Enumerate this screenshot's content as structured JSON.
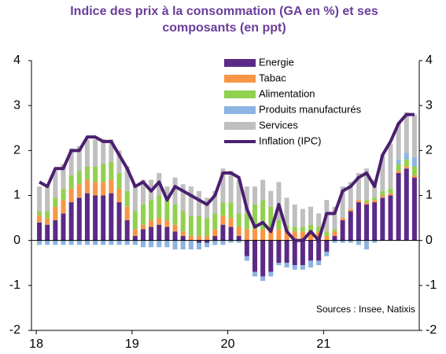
{
  "chart_data": {
    "type": "bar",
    "stacked": true,
    "title": "Indice des prix à la consommation (GA en %) et ses composants (en ppt)",
    "annotation": "Sources : Insee, Natixis",
    "categories": [
      "18",
      null,
      null,
      null,
      null,
      null,
      null,
      null,
      null,
      null,
      null,
      null,
      "19",
      null,
      null,
      null,
      null,
      null,
      null,
      null,
      null,
      null,
      null,
      null,
      "20",
      null,
      null,
      null,
      null,
      null,
      null,
      null,
      null,
      null,
      null,
      null,
      "21",
      null,
      null,
      null,
      null,
      null,
      null,
      null,
      null,
      null,
      null,
      null
    ],
    "ylim": [
      -2,
      4
    ],
    "yticks": [
      -2,
      -1,
      0,
      1,
      2,
      3,
      4
    ],
    "y2lim": [
      -2,
      4
    ],
    "y2ticks": [
      -2,
      -1,
      0,
      1,
      2,
      3,
      4
    ],
    "legend": "top",
    "series": [
      {
        "name": "Energie",
        "color": "#5b2a86",
        "values": [
          0.4,
          0.35,
          0.45,
          0.6,
          0.85,
          0.95,
          1.05,
          1.0,
          1.0,
          1.05,
          0.85,
          0.45,
          0.1,
          0.25,
          0.3,
          0.35,
          0.3,
          0.2,
          0.1,
          0.0,
          -0.05,
          -0.05,
          0.1,
          0.35,
          0.3,
          0.1,
          -0.35,
          -0.7,
          -0.8,
          -0.7,
          -0.5,
          -0.5,
          -0.55,
          -0.55,
          -0.45,
          -0.45,
          -0.25,
          0.1,
          0.45,
          0.65,
          0.85,
          0.8,
          0.85,
          0.95,
          1.0,
          1.5,
          1.6,
          1.4
        ]
      },
      {
        "name": "Tabac",
        "color": "#f79646",
        "values": [
          0.15,
          0.15,
          0.3,
          0.3,
          0.3,
          0.3,
          0.3,
          0.3,
          0.3,
          0.3,
          0.3,
          0.3,
          0.15,
          0.1,
          0.15,
          0.15,
          0.15,
          0.15,
          0.1,
          0.1,
          0.1,
          0.1,
          0.15,
          0.2,
          0.2,
          0.2,
          0.25,
          0.25,
          0.25,
          0.25,
          0.25,
          0.2,
          0.2,
          0.2,
          0.2,
          0.2,
          0.1,
          0.1,
          0.05,
          0.05,
          0.05,
          0.05,
          0.05,
          0.05,
          0.05,
          0.05,
          0.05,
          0.05
        ]
      },
      {
        "name": "Alimentation",
        "color": "#92d050",
        "values": [
          0.1,
          0.15,
          0.2,
          0.25,
          0.3,
          0.3,
          0.3,
          0.35,
          0.4,
          0.4,
          0.35,
          0.35,
          0.4,
          0.45,
          0.45,
          0.5,
          0.45,
          0.45,
          0.45,
          0.45,
          0.45,
          0.4,
          0.35,
          0.3,
          0.35,
          0.3,
          0.35,
          0.55,
          0.65,
          0.5,
          0.2,
          0.15,
          0.1,
          0.1,
          0.15,
          0.1,
          0.1,
          0.05,
          0.0,
          0.0,
          0.0,
          0.05,
          0.05,
          0.1,
          0.1,
          0.15,
          0.15,
          0.2
        ]
      },
      {
        "name": "Produits manufacturés",
        "color": "#8db4e2",
        "values": [
          -0.1,
          -0.1,
          -0.1,
          -0.1,
          -0.1,
          -0.1,
          -0.1,
          -0.1,
          -0.1,
          -0.1,
          -0.1,
          -0.1,
          -0.1,
          -0.15,
          -0.15,
          -0.15,
          -0.15,
          -0.2,
          -0.2,
          -0.2,
          -0.15,
          -0.1,
          -0.1,
          -0.1,
          -0.05,
          -0.05,
          -0.1,
          -0.1,
          -0.1,
          -0.1,
          -0.05,
          -0.1,
          -0.1,
          -0.1,
          -0.15,
          -0.1,
          -0.1,
          -0.05,
          -0.05,
          -0.05,
          -0.1,
          -0.2,
          -0.05,
          0.0,
          0.0,
          0.1,
          0.15,
          0.2
        ]
      },
      {
        "name": "Services",
        "color": "#bfbfbf",
        "values": [
          0.55,
          0.55,
          0.6,
          0.55,
          0.6,
          0.55,
          0.6,
          0.6,
          0.55,
          0.5,
          0.5,
          0.55,
          0.6,
          0.55,
          0.45,
          0.5,
          0.3,
          0.6,
          0.6,
          0.65,
          0.55,
          0.45,
          0.5,
          0.75,
          0.7,
          0.75,
          0.6,
          0.4,
          0.45,
          0.35,
          0.85,
          0.6,
          0.5,
          0.4,
          0.4,
          0.3,
          0.7,
          0.5,
          0.7,
          0.6,
          0.6,
          0.7,
          0.4,
          0.8,
          1.0,
          0.8,
          0.9,
          0.95
        ]
      },
      {
        "name": "Inflation (IPC)",
        "type": "line",
        "color": "#4b1f6f",
        "values": [
          1.3,
          1.2,
          1.6,
          1.6,
          2.0,
          2.0,
          2.3,
          2.3,
          2.2,
          2.2,
          1.9,
          1.6,
          1.2,
          1.3,
          1.1,
          1.3,
          0.9,
          1.2,
          1.1,
          1.0,
          0.9,
          0.8,
          1.0,
          1.5,
          1.5,
          1.4,
          0.7,
          0.3,
          0.4,
          0.2,
          0.8,
          0.2,
          0.0,
          0.0,
          0.2,
          0.0,
          0.6,
          0.6,
          1.1,
          1.2,
          1.4,
          1.5,
          1.2,
          1.9,
          2.2,
          2.6,
          2.8,
          2.8
        ]
      }
    ]
  }
}
